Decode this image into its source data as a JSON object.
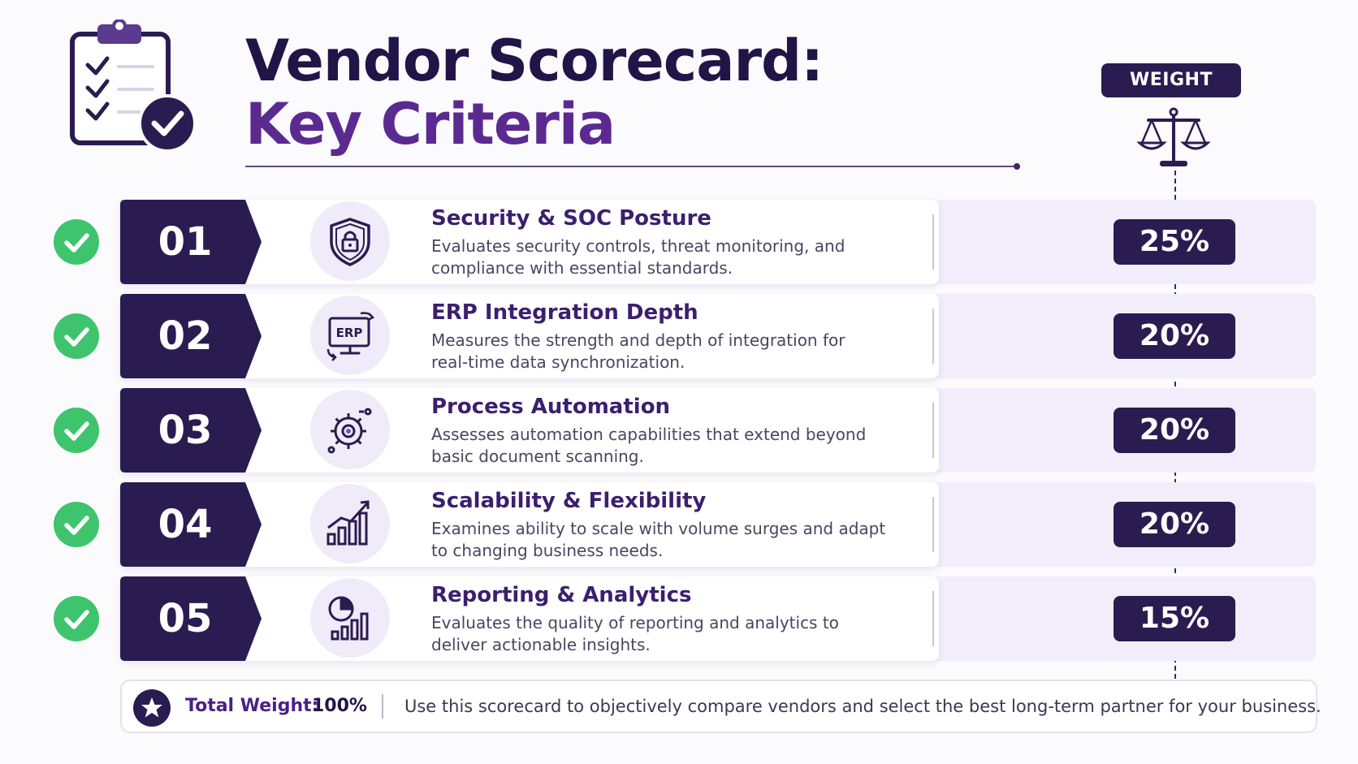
{
  "header": {
    "title_line1": "Vendor Scorecard:",
    "title_line2": "Key Criteria",
    "weight_label": "WEIGHT"
  },
  "colors": {
    "dark_purple": "#2a1c50",
    "accent_purple": "#5b2a91",
    "check_green": "#3ec46d",
    "row_tint": "#f1edfa"
  },
  "criteria": [
    {
      "number": "01",
      "icon": "shield-lock-icon",
      "title": "Security & SOC Posture",
      "description": "Evaluates security controls, threat monitoring, and compliance with essential standards.",
      "weight": "25%"
    },
    {
      "number": "02",
      "icon": "erp-monitor-icon",
      "icon_text": "ERP",
      "title": "ERP Integration Depth",
      "description": "Measures the strength and depth of integration for real-time data synchronization.",
      "weight": "20%"
    },
    {
      "number": "03",
      "icon": "gear-icon",
      "title": "Process Automation",
      "description": "Assesses automation capabilities that extend beyond basic document scanning.",
      "weight": "20%"
    },
    {
      "number": "04",
      "icon": "growth-chart-icon",
      "title": "Scalability & Flexibility",
      "description": "Examines ability to scale with volume surges and adapt to changing business needs.",
      "weight": "20%"
    },
    {
      "number": "05",
      "icon": "analytics-icon",
      "title": "Reporting & Analytics",
      "description": "Evaluates the quality of reporting and analytics to deliver actionable insights.",
      "weight": "15%"
    }
  ],
  "footer": {
    "total_label": "Total Weight:",
    "total_value": "100%",
    "note": "Use this scorecard to objectively compare vendors and select the best long-term partner for your business."
  }
}
